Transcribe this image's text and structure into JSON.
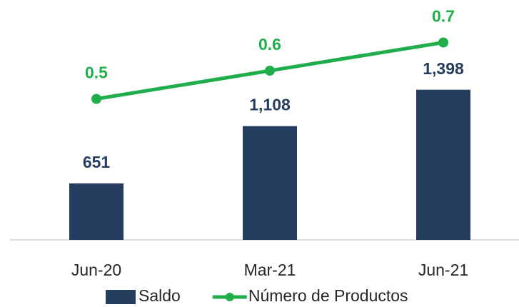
{
  "chart_data": {
    "type": "combo",
    "categories": [
      "Jun-20",
      "Mar-21",
      "Jun-21"
    ],
    "ylim": [
      200,
      2000
    ],
    "y2lim": [
      0,
      0.8
    ],
    "series": [
      {
        "name": "Saldo",
        "type": "bar",
        "color": "#253e5f",
        "values": [
          651,
          1108,
          1398
        ],
        "value_labels": [
          "651",
          "1,108",
          "1,398"
        ]
      },
      {
        "name": "Número de Productos",
        "type": "line",
        "axis": "y2",
        "color": "#1fae4b",
        "values": [
          0.5,
          0.6,
          0.7
        ]
      }
    ]
  }
}
